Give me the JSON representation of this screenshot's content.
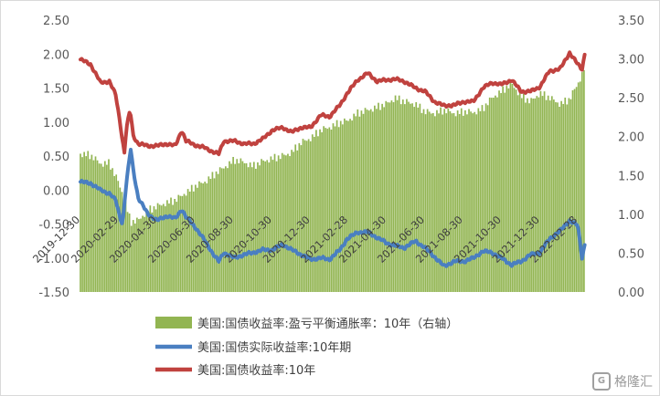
{
  "chart_data": {
    "type": "bar+line",
    "title": "",
    "left_axis": {
      "min": -1.5,
      "max": 2.5,
      "step": 0.5,
      "tick_labels": [
        "-1.50",
        "-1.00",
        "-0.50",
        "0.00",
        "0.50",
        "1.00",
        "1.50",
        "2.00",
        "2.50"
      ]
    },
    "right_axis": {
      "min": 0,
      "max": 3.5,
      "step": 0.5,
      "tick_labels": [
        "0.00",
        "0.50",
        "1.00",
        "1.50",
        "2.00",
        "2.50",
        "3.00",
        "3.50"
      ]
    },
    "x_range": [
      "2019-12-30",
      "2022-02-28"
    ],
    "x_tick_labels": [
      "2019-12-30",
      "2020-02-29",
      "2020-04-30",
      "2020-06-30",
      "2020-08-30",
      "2020-10-30",
      "2020-12-30",
      "2021-02-28",
      "2021-04-30",
      "2021-06-30",
      "2021-08-30",
      "2021-10-30",
      "2021-12-30",
      "2022-02-28"
    ],
    "grid": false,
    "legend_position": "bottom",
    "series": [
      {
        "name": "美国:国债收益率:盈亏平衡通胀率：10年（右轴）",
        "kind": "bar",
        "axis": "right",
        "color": "#92b552",
        "points": [
          [
            "2019-12-30",
            1.78
          ],
          [
            "2020-01-15",
            1.76
          ],
          [
            "2020-01-31",
            1.65
          ],
          [
            "2020-02-14",
            1.66
          ],
          [
            "2020-02-28",
            1.42
          ],
          [
            "2020-03-09",
            1.2
          ],
          [
            "2020-03-19",
            0.9
          ],
          [
            "2020-03-31",
            0.92
          ],
          [
            "2020-04-15",
            1.05
          ],
          [
            "2020-04-30",
            1.1
          ],
          [
            "2020-05-15",
            1.15
          ],
          [
            "2020-05-29",
            1.18
          ],
          [
            "2020-06-15",
            1.28
          ],
          [
            "2020-06-30",
            1.36
          ],
          [
            "2020-07-15",
            1.42
          ],
          [
            "2020-07-31",
            1.52
          ],
          [
            "2020-08-14",
            1.6
          ],
          [
            "2020-08-31",
            1.7
          ],
          [
            "2020-09-15",
            1.67
          ],
          [
            "2020-09-30",
            1.62
          ],
          [
            "2020-10-15",
            1.68
          ],
          [
            "2020-10-30",
            1.72
          ],
          [
            "2020-11-16",
            1.75
          ],
          [
            "2020-11-30",
            1.8
          ],
          [
            "2020-12-15",
            1.92
          ],
          [
            "2020-12-30",
            1.98
          ],
          [
            "2021-01-15",
            2.08
          ],
          [
            "2021-01-29",
            2.12
          ],
          [
            "2021-02-15",
            2.18
          ],
          [
            "2021-02-26",
            2.2
          ],
          [
            "2021-03-15",
            2.3
          ],
          [
            "2021-03-31",
            2.34
          ],
          [
            "2021-04-15",
            2.38
          ],
          [
            "2021-04-30",
            2.42
          ],
          [
            "2021-05-14",
            2.5
          ],
          [
            "2021-05-28",
            2.45
          ],
          [
            "2021-06-15",
            2.42
          ],
          [
            "2021-06-30",
            2.32
          ],
          [
            "2021-07-15",
            2.3
          ],
          [
            "2021-07-30",
            2.34
          ],
          [
            "2021-08-16",
            2.3
          ],
          [
            "2021-08-31",
            2.32
          ],
          [
            "2021-09-15",
            2.31
          ],
          [
            "2021-09-30",
            2.36
          ],
          [
            "2021-10-15",
            2.5
          ],
          [
            "2021-10-29",
            2.58
          ],
          [
            "2021-11-15",
            2.68
          ],
          [
            "2021-11-30",
            2.52
          ],
          [
            "2021-12-15",
            2.45
          ],
          [
            "2021-12-30",
            2.56
          ],
          [
            "2022-01-14",
            2.5
          ],
          [
            "2022-01-31",
            2.42
          ],
          [
            "2022-02-15",
            2.48
          ],
          [
            "2022-02-28",
            2.68
          ],
          [
            "2022-03-07",
            2.8
          ],
          [
            "2022-03-11",
            2.9
          ]
        ]
      },
      {
        "name": "美国:国债实际收益率:10年期",
        "kind": "line",
        "axis": "left",
        "color": "#4a7fc1",
        "points": [
          [
            "2019-12-30",
            0.12
          ],
          [
            "2020-01-15",
            0.1
          ],
          [
            "2020-01-31",
            0.0
          ],
          [
            "2020-02-14",
            -0.05
          ],
          [
            "2020-02-24",
            -0.15
          ],
          [
            "2020-03-02",
            -0.4
          ],
          [
            "2020-03-06",
            -0.5
          ],
          [
            "2020-03-12",
            0.1
          ],
          [
            "2020-03-19",
            0.6
          ],
          [
            "2020-03-23",
            0.3
          ],
          [
            "2020-03-31",
            -0.12
          ],
          [
            "2020-04-15",
            -0.35
          ],
          [
            "2020-04-30",
            -0.45
          ],
          [
            "2020-05-15",
            -0.38
          ],
          [
            "2020-05-29",
            -0.42
          ],
          [
            "2020-06-08",
            -0.28
          ],
          [
            "2020-06-15",
            -0.4
          ],
          [
            "2020-06-30",
            -0.55
          ],
          [
            "2020-07-15",
            -0.75
          ],
          [
            "2020-07-31",
            -0.98
          ],
          [
            "2020-08-06",
            -1.05
          ],
          [
            "2020-08-14",
            -0.92
          ],
          [
            "2020-08-31",
            -1.0
          ],
          [
            "2020-09-15",
            -0.95
          ],
          [
            "2020-09-30",
            -0.92
          ],
          [
            "2020-10-15",
            -0.88
          ],
          [
            "2020-10-30",
            -0.88
          ],
          [
            "2020-11-16",
            -0.8
          ],
          [
            "2020-11-30",
            -0.88
          ],
          [
            "2020-12-15",
            -0.95
          ],
          [
            "2020-12-30",
            -1.02
          ],
          [
            "2021-01-15",
            -1.0
          ],
          [
            "2021-01-29",
            -1.02
          ],
          [
            "2021-02-15",
            -0.88
          ],
          [
            "2021-02-26",
            -0.72
          ],
          [
            "2021-03-15",
            -0.62
          ],
          [
            "2021-03-31",
            -0.62
          ],
          [
            "2021-04-15",
            -0.7
          ],
          [
            "2021-04-30",
            -0.78
          ],
          [
            "2021-05-14",
            -0.82
          ],
          [
            "2021-05-28",
            -0.85
          ],
          [
            "2021-06-15",
            -0.75
          ],
          [
            "2021-06-30",
            -0.85
          ],
          [
            "2021-07-15",
            -0.98
          ],
          [
            "2021-07-30",
            -1.12
          ],
          [
            "2021-08-16",
            -1.05
          ],
          [
            "2021-08-31",
            -1.05
          ],
          [
            "2021-09-15",
            -1.0
          ],
          [
            "2021-09-30",
            -0.9
          ],
          [
            "2021-10-15",
            -0.92
          ],
          [
            "2021-10-29",
            -1.0
          ],
          [
            "2021-11-15",
            -1.1
          ],
          [
            "2021-11-30",
            -1.05
          ],
          [
            "2021-12-15",
            -0.95
          ],
          [
            "2021-12-30",
            -0.92
          ],
          [
            "2022-01-14",
            -0.72
          ],
          [
            "2022-01-31",
            -0.6
          ],
          [
            "2022-02-15",
            -0.45
          ],
          [
            "2022-02-28",
            -0.52
          ],
          [
            "2022-03-07",
            -1.0
          ],
          [
            "2022-03-11",
            -0.8
          ]
        ]
      },
      {
        "name": "美国:国债收益率:10年",
        "kind": "line",
        "axis": "left",
        "color": "#c0423f",
        "points": [
          [
            "2019-12-30",
            1.92
          ],
          [
            "2020-01-15",
            1.85
          ],
          [
            "2020-01-31",
            1.58
          ],
          [
            "2020-02-14",
            1.6
          ],
          [
            "2020-02-24",
            1.4
          ],
          [
            "2020-03-02",
            1.0
          ],
          [
            "2020-03-06",
            0.72
          ],
          [
            "2020-03-09",
            0.55
          ],
          [
            "2020-03-12",
            0.9
          ],
          [
            "2020-03-18",
            1.18
          ],
          [
            "2020-03-23",
            0.8
          ],
          [
            "2020-03-31",
            0.68
          ],
          [
            "2020-04-15",
            0.65
          ],
          [
            "2020-04-30",
            0.65
          ],
          [
            "2020-05-15",
            0.68
          ],
          [
            "2020-05-29",
            0.65
          ],
          [
            "2020-06-08",
            0.88
          ],
          [
            "2020-06-15",
            0.72
          ],
          [
            "2020-06-30",
            0.66
          ],
          [
            "2020-07-15",
            0.62
          ],
          [
            "2020-07-31",
            0.55
          ],
          [
            "2020-08-06",
            0.53
          ],
          [
            "2020-08-14",
            0.72
          ],
          [
            "2020-08-31",
            0.72
          ],
          [
            "2020-09-15",
            0.68
          ],
          [
            "2020-09-30",
            0.68
          ],
          [
            "2020-10-15",
            0.75
          ],
          [
            "2020-10-30",
            0.88
          ],
          [
            "2020-11-16",
            0.92
          ],
          [
            "2020-11-30",
            0.85
          ],
          [
            "2020-12-15",
            0.92
          ],
          [
            "2020-12-30",
            0.92
          ],
          [
            "2021-01-15",
            1.1
          ],
          [
            "2021-01-29",
            1.08
          ],
          [
            "2021-02-15",
            1.25
          ],
          [
            "2021-02-26",
            1.42
          ],
          [
            "2021-03-15",
            1.62
          ],
          [
            "2021-03-31",
            1.72
          ],
          [
            "2021-04-15",
            1.6
          ],
          [
            "2021-04-30",
            1.62
          ],
          [
            "2021-05-14",
            1.63
          ],
          [
            "2021-05-28",
            1.6
          ],
          [
            "2021-06-15",
            1.5
          ],
          [
            "2021-06-30",
            1.45
          ],
          [
            "2021-07-15",
            1.3
          ],
          [
            "2021-07-30",
            1.24
          ],
          [
            "2021-08-16",
            1.25
          ],
          [
            "2021-08-31",
            1.3
          ],
          [
            "2021-09-15",
            1.3
          ],
          [
            "2021-09-30",
            1.5
          ],
          [
            "2021-10-15",
            1.58
          ],
          [
            "2021-10-29",
            1.55
          ],
          [
            "2021-11-15",
            1.62
          ],
          [
            "2021-11-30",
            1.45
          ],
          [
            "2021-12-15",
            1.45
          ],
          [
            "2021-12-30",
            1.52
          ],
          [
            "2022-01-14",
            1.75
          ],
          [
            "2022-01-31",
            1.78
          ],
          [
            "2022-02-15",
            2.02
          ],
          [
            "2022-02-28",
            1.85
          ],
          [
            "2022-03-07",
            1.78
          ],
          [
            "2022-03-11",
            2.0
          ]
        ]
      }
    ]
  },
  "watermark": {
    "icon": "G",
    "text": "格隆汇"
  }
}
